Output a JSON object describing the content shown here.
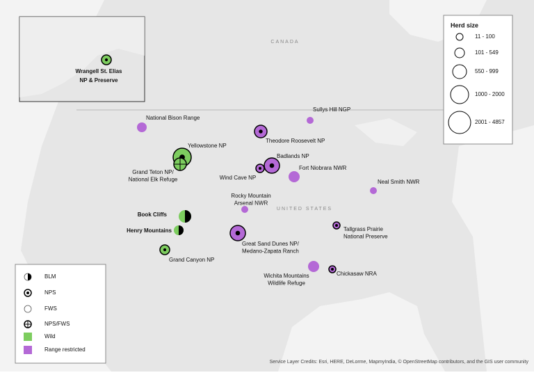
{
  "basemap": {
    "countries": [
      "CANADA",
      "UNITED STATES"
    ]
  },
  "inset": {
    "label": [
      "Wrangell St. Elias",
      "NP & Preserve"
    ]
  },
  "sites": [
    {
      "label": [
        "National Bison Range"
      ]
    },
    {
      "label": [
        "Yellowstone NP"
      ]
    },
    {
      "label": [
        "Grand Teton NP/",
        "National Elk Refuge"
      ]
    },
    {
      "label": [
        "Sullys Hill NGP"
      ]
    },
    {
      "label": [
        "Theodore Roosevelt NP"
      ]
    },
    {
      "label": [
        "Badlands NP"
      ]
    },
    {
      "label": [
        "Wind Cave NP"
      ]
    },
    {
      "label": [
        "Fort Niobrara NWR"
      ]
    },
    {
      "label": [
        "Neal Smith NWR"
      ]
    },
    {
      "label": [
        "Rocky Mountain",
        "Arsenal NWR"
      ]
    },
    {
      "label": [
        "Book Cliffs"
      ]
    },
    {
      "label": [
        "Henry Mountains"
      ]
    },
    {
      "label": [
        "Great Sand Dunes NP/",
        "Medano-Zapata Ranch"
      ]
    },
    {
      "label": [
        "Tallgrass Prairie",
        "National Preserve"
      ]
    },
    {
      "label": [
        "Grand Canyon NP"
      ]
    },
    {
      "label": [
        "Wichita Mountains",
        "Wildlife Refuge"
      ]
    },
    {
      "label": [
        "Chickasaw NRA"
      ]
    }
  ],
  "size_legend": {
    "title": "Herd size",
    "items": [
      "11 - 100",
      "101 - 549",
      "550 - 999",
      "1000 - 2000",
      "2001 - 4857"
    ]
  },
  "type_legend": {
    "items": [
      "BLM",
      "NPS",
      "FWS",
      "NPS/FWS",
      "Wild",
      "Range restricted"
    ]
  },
  "credits": "Service Layer Credits: Esri, HERE, DeLorme, MapmyIndia, © OpenStreetMap contributors, and the GIS user community"
}
